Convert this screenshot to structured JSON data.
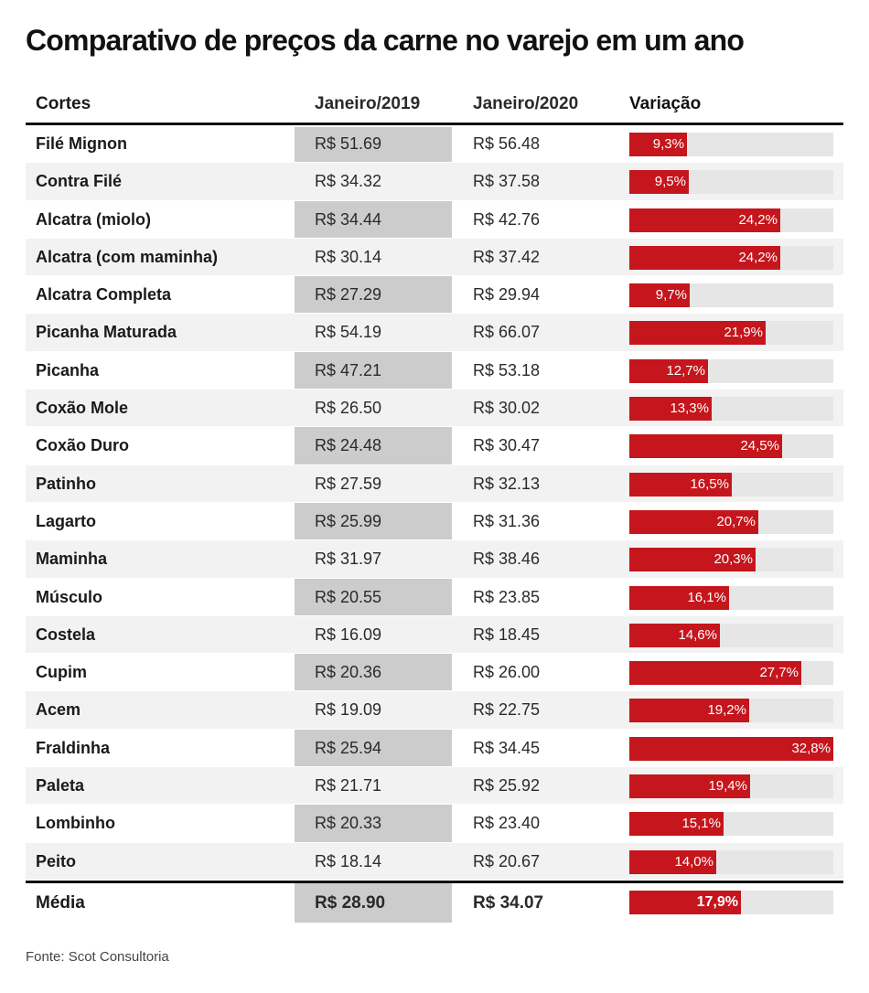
{
  "title": "Comparativo de preços da carne no varejo em um ano",
  "source": "Fonte: Scot Consultoria",
  "colors": {
    "bar": "#c4161c",
    "track": "#e6e6e6",
    "shade_2019": "#cccccc"
  },
  "chart_data": {
    "type": "table",
    "columns": [
      "Cortes",
      "Janeiro/2019",
      "Janeiro/2020",
      "Variação"
    ],
    "rows": [
      {
        "cut": "Filé Mignon",
        "jan2019": "R$ 51.69",
        "jan2020": "R$ 56.48",
        "variation": 9.3,
        "variation_label": "9,3%"
      },
      {
        "cut": "Contra Filé",
        "jan2019": "R$ 34.32",
        "jan2020": "R$ 37.58",
        "variation": 9.5,
        "variation_label": "9,5%"
      },
      {
        "cut": "Alcatra (miolo)",
        "jan2019": "R$ 34.44",
        "jan2020": "R$ 42.76",
        "variation": 24.2,
        "variation_label": "24,2%"
      },
      {
        "cut": "Alcatra (com maminha)",
        "jan2019": "R$ 30.14",
        "jan2020": "R$ 37.42",
        "variation": 24.2,
        "variation_label": "24,2%"
      },
      {
        "cut": "Alcatra Completa",
        "jan2019": "R$ 27.29",
        "jan2020": "R$ 29.94",
        "variation": 9.7,
        "variation_label": "9,7%"
      },
      {
        "cut": "Picanha Maturada",
        "jan2019": "R$ 54.19",
        "jan2020": "R$ 66.07",
        "variation": 21.9,
        "variation_label": "21,9%"
      },
      {
        "cut": "Picanha",
        "jan2019": "R$ 47.21",
        "jan2020": "R$ 53.18",
        "variation": 12.7,
        "variation_label": "12,7%"
      },
      {
        "cut": "Coxão Mole",
        "jan2019": "R$ 26.50",
        "jan2020": "R$ 30.02",
        "variation": 13.3,
        "variation_label": "13,3%"
      },
      {
        "cut": "Coxão Duro",
        "jan2019": "R$ 24.48",
        "jan2020": "R$ 30.47",
        "variation": 24.5,
        "variation_label": "24,5%"
      },
      {
        "cut": "Patinho",
        "jan2019": "R$ 27.59",
        "jan2020": "R$ 32.13",
        "variation": 16.5,
        "variation_label": "16,5%"
      },
      {
        "cut": "Lagarto",
        "jan2019": "R$ 25.99",
        "jan2020": "R$ 31.36",
        "variation": 20.7,
        "variation_label": "20,7%"
      },
      {
        "cut": "Maminha",
        "jan2019": "R$ 31.97",
        "jan2020": "R$ 38.46",
        "variation": 20.3,
        "variation_label": "20,3%"
      },
      {
        "cut": "Músculo",
        "jan2019": "R$ 20.55",
        "jan2020": "R$ 23.85",
        "variation": 16.1,
        "variation_label": "16,1%"
      },
      {
        "cut": "Costela",
        "jan2019": "R$ 16.09",
        "jan2020": "R$ 18.45",
        "variation": 14.6,
        "variation_label": "14,6%"
      },
      {
        "cut": "Cupim",
        "jan2019": "R$ 20.36",
        "jan2020": "R$ 26.00",
        "variation": 27.7,
        "variation_label": "27,7%"
      },
      {
        "cut": "Acem",
        "jan2019": "R$ 19.09",
        "jan2020": "R$ 22.75",
        "variation": 19.2,
        "variation_label": "19,2%"
      },
      {
        "cut": "Fraldinha",
        "jan2019": "R$ 25.94",
        "jan2020": "R$ 34.45",
        "variation": 32.8,
        "variation_label": "32,8%"
      },
      {
        "cut": "Paleta",
        "jan2019": "R$ 21.71",
        "jan2020": "R$ 25.92",
        "variation": 19.4,
        "variation_label": "19,4%"
      },
      {
        "cut": "Lombinho",
        "jan2019": "R$ 20.33",
        "jan2020": "R$ 23.40",
        "variation": 15.1,
        "variation_label": "15,1%"
      },
      {
        "cut": "Peito",
        "jan2019": "R$ 18.14",
        "jan2020": "R$ 20.67",
        "variation": 14.0,
        "variation_label": "14,0%"
      }
    ],
    "average": {
      "cut": "Média",
      "jan2019": "R$ 28.90",
      "jan2020": "R$ 34.07",
      "variation": 17.9,
      "variation_label": "17,9%"
    },
    "bar_max": 32.8
  }
}
